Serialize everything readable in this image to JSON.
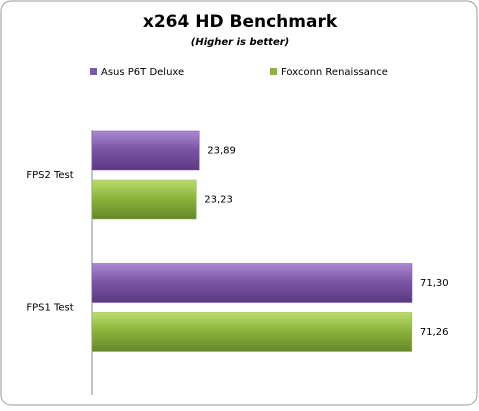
{
  "chart_data": {
    "type": "hbar",
    "title": "x264 HD Benchmark",
    "subtitle": "(Higher is better)",
    "categories": [
      "FPS2 Test",
      "FPS1 Test"
    ],
    "series": [
      {
        "name": "Asus P6T Deluxe",
        "color": "#7d56a8",
        "values": [
          23.89,
          71.3
        ],
        "value_labels": [
          "23,89",
          "71,30"
        ]
      },
      {
        "name": "Foxconn Renaissance",
        "color": "#8cb43c",
        "values": [
          23.23,
          71.26
        ],
        "value_labels": [
          "23,23",
          "71,26"
        ]
      }
    ],
    "legend": "top"
  }
}
